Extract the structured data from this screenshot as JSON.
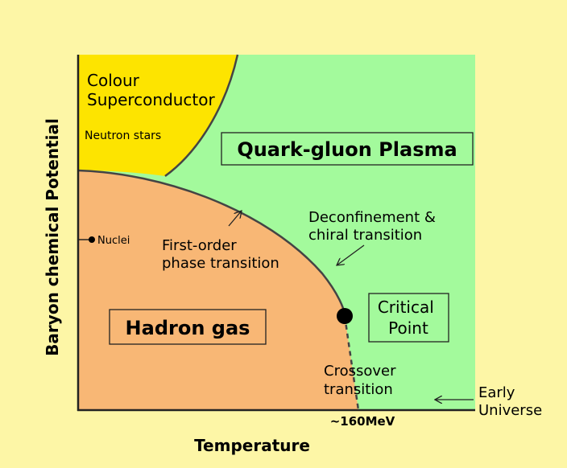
{
  "regions": {
    "colour_superconductor": [
      "Colour",
      "Superconductor"
    ],
    "neutron_stars": "Neutron stars",
    "quark_gluon_plasma": "Quark-gluon Plasma",
    "hadron_gas": "Hadron gas",
    "critical_point": [
      "Critical",
      "Point"
    ],
    "nuclei": "Nuclei"
  },
  "annotations": {
    "deconfinement": [
      "Deconfinement &",
      "chiral transition"
    ],
    "first_order": [
      "First-order",
      "phase transition"
    ],
    "crossover": [
      "Crossover",
      "transition"
    ],
    "early_universe": [
      "Early",
      "Universe"
    ],
    "temperature_mark": "~160MeV"
  },
  "axes": {
    "x_label": "Temperature",
    "y_label": "Baryon chemical Potential"
  }
}
